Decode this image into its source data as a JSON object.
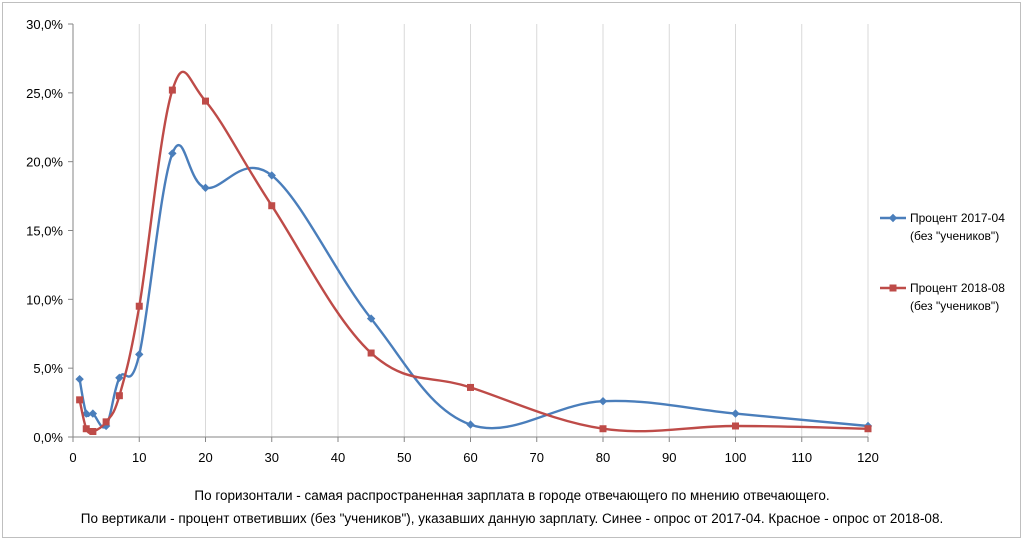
{
  "chart_data": {
    "type": "line",
    "xlim": [
      0,
      120
    ],
    "ylim": [
      0,
      30
    ],
    "x_ticks": [
      0,
      10,
      20,
      30,
      40,
      50,
      60,
      70,
      80,
      90,
      100,
      110,
      120
    ],
    "x_tick_labels": [
      "0",
      "10",
      "20",
      "30",
      "40",
      "50",
      "60",
      "70",
      "80",
      "90",
      "100",
      "110",
      "120"
    ],
    "y_ticks": [
      0,
      5,
      10,
      15,
      20,
      25,
      30
    ],
    "y_tick_labels": [
      "0,0%",
      "5,0%",
      "10,0%",
      "15,0%",
      "20,0%",
      "25,0%",
      "30,0%"
    ],
    "grid": "vertical",
    "legend_position": "right",
    "series": [
      {
        "name_line1": "Процент 2017-04",
        "name_line2": "(без \"учеников\")",
        "color": "#4a7ebb",
        "marker": "diamond",
        "x": [
          1,
          2,
          3,
          5,
          7,
          10,
          15,
          20,
          30,
          45,
          60,
          80,
          100,
          120
        ],
        "y": [
          4.2,
          1.7,
          1.7,
          0.8,
          4.3,
          6.0,
          20.6,
          18.1,
          19.0,
          8.6,
          0.9,
          2.6,
          1.7,
          0.8
        ]
      },
      {
        "name_line1": "Процент 2018-08",
        "name_line2": "(без \"учеников\")",
        "color": "#be4b48",
        "marker": "square",
        "x": [
          1,
          2,
          3,
          5,
          7,
          10,
          15,
          20,
          30,
          45,
          60,
          80,
          100,
          120
        ],
        "y": [
          2.7,
          0.6,
          0.4,
          1.1,
          3.0,
          9.5,
          25.2,
          24.4,
          16.8,
          6.1,
          3.6,
          0.6,
          0.8,
          0.6
        ]
      }
    ]
  },
  "caption": {
    "line1": "По горизонтали - самая распространенная зарплата в городе отвечающего по мнению отвечающего.",
    "line2": "По вертикали - процент ответивших (без \"учеников\"), указавших данную зарплату. Синее - опрос от 2017-04. Красное - опрос от 2018-08."
  }
}
